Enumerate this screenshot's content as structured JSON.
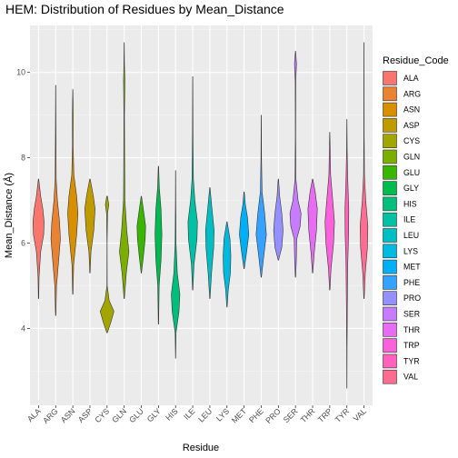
{
  "chart_data": {
    "type": "violin",
    "title": "HEM: Distribution of Residues by Mean_Distance",
    "xlabel": "Residue",
    "ylabel": "Mean_Distance (Å)",
    "ylim": [
      2.2,
      11.1
    ],
    "y_ticks": [
      4,
      6,
      8,
      10
    ],
    "grid": true,
    "legend_title": "Residue_Code",
    "legend_position": "right",
    "categories": [
      "ALA",
      "ARG",
      "ASN",
      "ASP",
      "CYS",
      "GLN",
      "GLU",
      "GLY",
      "HIS",
      "ILE",
      "LEU",
      "LYS",
      "MET",
      "PHE",
      "PRO",
      "SER",
      "THR",
      "TRP",
      "TYR",
      "VAL"
    ],
    "colors": [
      "#F8766D",
      "#EA8331",
      "#D89000",
      "#C09B00",
      "#A3A500",
      "#7CAE00",
      "#39B600",
      "#00BB4E",
      "#00BF7D",
      "#00C1A3",
      "#00BFC4",
      "#00BAE0",
      "#00B0F6",
      "#35A2FF",
      "#9590FF",
      "#C77CFF",
      "#E76BF3",
      "#FA62DB",
      "#FF62BC",
      "#FF6C91"
    ],
    "violins": [
      {
        "category": "ALA",
        "min": 4.7,
        "max": 7.5,
        "profile": [
          [
            4.7,
            0.02
          ],
          [
            5.2,
            0.06
          ],
          [
            5.8,
            0.25
          ],
          [
            6.2,
            0.6
          ],
          [
            6.5,
            0.65
          ],
          [
            6.8,
            0.5
          ],
          [
            7.1,
            0.25
          ],
          [
            7.5,
            0.02
          ]
        ]
      },
      {
        "category": "ARG",
        "min": 4.3,
        "max": 9.7,
        "profile": [
          [
            4.3,
            0.02
          ],
          [
            5.0,
            0.1
          ],
          [
            5.6,
            0.35
          ],
          [
            6.1,
            0.55
          ],
          [
            6.5,
            0.45
          ],
          [
            7.0,
            0.2
          ],
          [
            7.5,
            0.06
          ],
          [
            8.5,
            0.03
          ],
          [
            9.7,
            0.01
          ]
        ]
      },
      {
        "category": "ASN",
        "min": 4.8,
        "max": 9.6,
        "profile": [
          [
            4.8,
            0.02
          ],
          [
            5.5,
            0.1
          ],
          [
            6.2,
            0.45
          ],
          [
            6.7,
            0.6
          ],
          [
            7.1,
            0.45
          ],
          [
            7.6,
            0.12
          ],
          [
            8.3,
            0.04
          ],
          [
            9.0,
            0.05
          ],
          [
            9.6,
            0.01
          ]
        ]
      },
      {
        "category": "ASP",
        "min": 5.3,
        "max": 7.5,
        "profile": [
          [
            5.3,
            0.02
          ],
          [
            5.8,
            0.12
          ],
          [
            6.3,
            0.45
          ],
          [
            6.8,
            0.6
          ],
          [
            7.1,
            0.4
          ],
          [
            7.5,
            0.03
          ]
        ]
      },
      {
        "category": "CYS",
        "min": 3.9,
        "max": 7.1,
        "profile": [
          [
            3.9,
            0.03
          ],
          [
            4.15,
            0.45
          ],
          [
            4.4,
            0.8
          ],
          [
            4.65,
            0.25
          ],
          [
            5.0,
            0.02
          ],
          [
            6.0,
            0.01
          ],
          [
            6.7,
            0.06
          ],
          [
            6.9,
            0.2
          ],
          [
            7.1,
            0.04
          ]
        ]
      },
      {
        "category": "GLN",
        "min": 4.7,
        "max": 10.7,
        "profile": [
          [
            4.7,
            0.02
          ],
          [
            5.3,
            0.25
          ],
          [
            5.8,
            0.55
          ],
          [
            6.3,
            0.3
          ],
          [
            7.0,
            0.08
          ],
          [
            8.0,
            0.05
          ],
          [
            9.0,
            0.03
          ],
          [
            9.8,
            0.08
          ],
          [
            10.2,
            0.03
          ],
          [
            10.7,
            0.01
          ]
        ]
      },
      {
        "category": "GLU",
        "min": 5.3,
        "max": 7.1,
        "profile": [
          [
            5.3,
            0.02
          ],
          [
            5.7,
            0.25
          ],
          [
            6.1,
            0.45
          ],
          [
            6.4,
            0.5
          ],
          [
            6.7,
            0.3
          ],
          [
            7.1,
            0.02
          ]
        ]
      },
      {
        "category": "GLY",
        "min": 4.1,
        "max": 7.8,
        "profile": [
          [
            4.1,
            0.02
          ],
          [
            5.0,
            0.08
          ],
          [
            5.6,
            0.3
          ],
          [
            6.2,
            0.4
          ],
          [
            6.8,
            0.3
          ],
          [
            7.3,
            0.1
          ],
          [
            7.8,
            0.02
          ]
        ]
      },
      {
        "category": "HIS",
        "min": 3.3,
        "max": 7.7,
        "profile": [
          [
            3.3,
            0.01
          ],
          [
            3.9,
            0.05
          ],
          [
            4.4,
            0.4
          ],
          [
            4.8,
            0.5
          ],
          [
            5.3,
            0.2
          ],
          [
            6.0,
            0.05
          ],
          [
            7.0,
            0.02
          ],
          [
            7.7,
            0.01
          ]
        ]
      },
      {
        "category": "ILE",
        "min": 4.9,
        "max": 9.9,
        "profile": [
          [
            4.9,
            0.02
          ],
          [
            5.5,
            0.15
          ],
          [
            6.1,
            0.5
          ],
          [
            6.5,
            0.55
          ],
          [
            7.0,
            0.25
          ],
          [
            7.5,
            0.08
          ],
          [
            8.5,
            0.03
          ],
          [
            9.9,
            0.01
          ]
        ]
      },
      {
        "category": "LEU",
        "min": 4.7,
        "max": 7.3,
        "profile": [
          [
            4.7,
            0.02
          ],
          [
            5.3,
            0.2
          ],
          [
            5.9,
            0.45
          ],
          [
            6.3,
            0.5
          ],
          [
            6.8,
            0.25
          ],
          [
            7.3,
            0.02
          ]
        ]
      },
      {
        "category": "LYS",
        "min": 4.5,
        "max": 6.5,
        "profile": [
          [
            4.5,
            0.02
          ],
          [
            4.9,
            0.15
          ],
          [
            5.3,
            0.4
          ],
          [
            5.7,
            0.45
          ],
          [
            6.1,
            0.35
          ],
          [
            6.5,
            0.02
          ]
        ]
      },
      {
        "category": "MET",
        "min": 5.4,
        "max": 7.2,
        "profile": [
          [
            5.4,
            0.02
          ],
          [
            5.8,
            0.3
          ],
          [
            6.2,
            0.55
          ],
          [
            6.6,
            0.4
          ],
          [
            6.9,
            0.15
          ],
          [
            7.2,
            0.02
          ]
        ]
      },
      {
        "category": "PHE",
        "min": 5.2,
        "max": 9.0,
        "profile": [
          [
            5.2,
            0.02
          ],
          [
            5.7,
            0.3
          ],
          [
            6.2,
            0.6
          ],
          [
            6.7,
            0.4
          ],
          [
            7.2,
            0.1
          ],
          [
            8.0,
            0.03
          ],
          [
            9.0,
            0.01
          ]
        ]
      },
      {
        "category": "PRO",
        "min": 5.6,
        "max": 7.5,
        "profile": [
          [
            5.6,
            0.02
          ],
          [
            5.9,
            0.4
          ],
          [
            6.3,
            0.55
          ],
          [
            6.7,
            0.4
          ],
          [
            7.1,
            0.15
          ],
          [
            7.5,
            0.02
          ]
        ]
      },
      {
        "category": "SER",
        "min": 5.2,
        "max": 10.5,
        "profile": [
          [
            5.2,
            0.02
          ],
          [
            5.6,
            0.1
          ],
          [
            6.1,
            0.15
          ],
          [
            6.4,
            0.55
          ],
          [
            6.7,
            0.65
          ],
          [
            7.0,
            0.3
          ],
          [
            7.5,
            0.05
          ],
          [
            8.5,
            0.02
          ],
          [
            9.8,
            0.03
          ],
          [
            10.2,
            0.12
          ],
          [
            10.5,
            0.01
          ]
        ]
      },
      {
        "category": "THR",
        "min": 5.3,
        "max": 7.5,
        "profile": [
          [
            5.3,
            0.02
          ],
          [
            5.8,
            0.2
          ],
          [
            6.3,
            0.45
          ],
          [
            6.8,
            0.55
          ],
          [
            7.2,
            0.3
          ],
          [
            7.5,
            0.02
          ]
        ]
      },
      {
        "category": "TRP",
        "min": 4.9,
        "max": 8.6,
        "profile": [
          [
            4.9,
            0.02
          ],
          [
            5.4,
            0.15
          ],
          [
            6.0,
            0.45
          ],
          [
            6.5,
            0.55
          ],
          [
            7.0,
            0.35
          ],
          [
            7.6,
            0.1
          ],
          [
            8.6,
            0.01
          ]
        ]
      },
      {
        "category": "TYR",
        "min": 2.6,
        "max": 8.9,
        "profile": [
          [
            2.6,
            0.01
          ],
          [
            3.5,
            0.02
          ],
          [
            4.5,
            0.05
          ],
          [
            5.5,
            0.1
          ],
          [
            6.2,
            0.2
          ],
          [
            6.8,
            0.22
          ],
          [
            7.5,
            0.1
          ],
          [
            8.2,
            0.03
          ],
          [
            8.9,
            0.01
          ]
        ]
      },
      {
        "category": "VAL",
        "min": 4.7,
        "max": 10.7,
        "profile": [
          [
            4.7,
            0.02
          ],
          [
            5.3,
            0.15
          ],
          [
            5.9,
            0.4
          ],
          [
            6.4,
            0.45
          ],
          [
            7.0,
            0.2
          ],
          [
            7.6,
            0.05
          ],
          [
            8.5,
            0.02
          ],
          [
            10.7,
            0.01
          ]
        ]
      }
    ]
  }
}
